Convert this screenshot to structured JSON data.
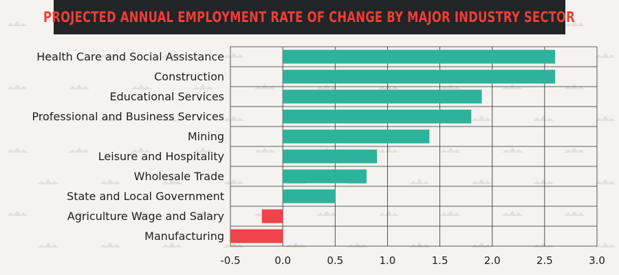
{
  "chart_data": {
    "type": "bar",
    "orientation": "horizontal",
    "title": "PROJECTED ANNUAL EMPLOYMENT RATE OF CHANGE BY MAJOR INDUSTRY SECTOR",
    "categories": [
      "Health Care and Social Assistance",
      "Construction",
      "Educational Services",
      "Professional and Business Services",
      "Mining",
      "Leisure and Hospitality",
      "Wholesale Trade",
      "State and Local Government",
      "Agriculture Wage and Salary",
      "Manufacturing"
    ],
    "values": [
      2.6,
      2.6,
      1.9,
      1.8,
      1.4,
      0.9,
      0.8,
      0.5,
      -0.2,
      -0.5
    ],
    "xlim": [
      -0.5,
      3.0
    ],
    "xticks": [
      "-0.5",
      "0.0",
      "0.5",
      "1.0",
      "1.5",
      "2.0",
      "2.5",
      "3.0"
    ],
    "xtick_values": [
      -0.5,
      0,
      0.5,
      1.0,
      1.5,
      2.0,
      2.5,
      3.0
    ],
    "grid": true,
    "colors": {
      "positive": "#2db39b",
      "negative": "#f0434a",
      "title_text": "#ef3e36",
      "title_background": "#222428",
      "background": "#f4f3ef",
      "grid": "#2a2a2a"
    }
  }
}
